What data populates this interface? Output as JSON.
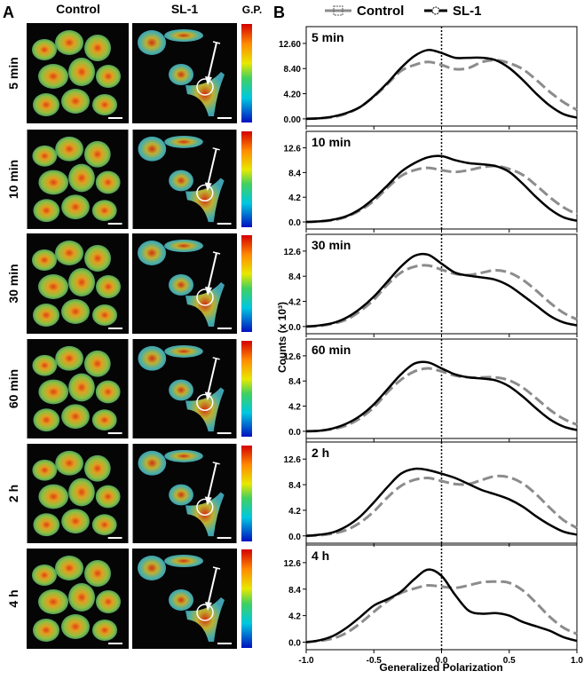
{
  "figure": {
    "panel_a": "A",
    "panel_b": "B",
    "col_control": "Control",
    "col_sl1": "SL-1",
    "colorbar_label": "G.P.",
    "rows": [
      "5 min",
      "10 min",
      "30 min",
      "60 min",
      "2 h",
      "4 h"
    ],
    "y_label": "Counts (x 10³)",
    "x_label": "Generalized Polarization"
  },
  "chart_data": [
    {
      "type": "line",
      "title": "5 min",
      "x": [
        -1,
        -0.9,
        -0.8,
        -0.7,
        -0.6,
        -0.5,
        -0.4,
        -0.3,
        -0.2,
        -0.1,
        0,
        0.1,
        0.2,
        0.3,
        0.4,
        0.5,
        0.6,
        0.7,
        0.8,
        0.9,
        1
      ],
      "series": [
        {
          "name": "Control",
          "color": "#8c8c8c",
          "values": [
            0,
            0.1,
            0.3,
            0.9,
            2,
            3.7,
            5.8,
            8,
            9,
            9.5,
            9,
            8.3,
            8.5,
            9.5,
            9.8,
            9.3,
            8.3,
            6.5,
            4.5,
            2.8,
            1.5
          ]
        },
        {
          "name": "SL-1",
          "color": "#000000",
          "values": [
            0,
            0.1,
            0.4,
            1,
            2,
            3.8,
            6,
            8.5,
            10.5,
            11.5,
            11,
            10.2,
            10.2,
            10.2,
            9.8,
            8.5,
            6.5,
            4.2,
            2.2,
            0.8,
            0.2
          ]
        }
      ],
      "xlim": [
        -1,
        1
      ],
      "xticks": [
        -1,
        -0.5,
        0,
        0.5,
        1
      ],
      "ylim": [
        -1.2,
        15.4
      ],
      "yticks": [
        {
          "value": 0,
          "label": "0.00"
        },
        {
          "value": 4.2,
          "label": "4.20"
        },
        {
          "value": 8.4,
          "label": "8.40"
        },
        {
          "value": 12.6,
          "label": "12.60"
        }
      ],
      "vline": 0
    },
    {
      "type": "line",
      "title": "10 min",
      "x": [
        -1,
        -0.9,
        -0.8,
        -0.7,
        -0.6,
        -0.5,
        -0.4,
        -0.3,
        -0.2,
        -0.1,
        0,
        0.1,
        0.2,
        0.3,
        0.4,
        0.5,
        0.6,
        0.7,
        0.8,
        0.9,
        1
      ],
      "series": [
        {
          "color": "#8c8c8c",
          "values": [
            0,
            0.1,
            0.3,
            0.9,
            2,
            3.6,
            5.8,
            7.8,
            8.8,
            9.2,
            8.8,
            8.5,
            8.8,
            9.3,
            9.5,
            9,
            8,
            6.2,
            4.2,
            2.5,
            1.3
          ]
        },
        {
          "color": "#000000",
          "values": [
            0,
            0.1,
            0.4,
            1,
            2.2,
            4,
            6.2,
            8.5,
            10,
            11,
            11.2,
            10.5,
            10,
            9.8,
            9.5,
            8.5,
            6.5,
            4.2,
            2.2,
            0.8,
            0.2
          ]
        }
      ],
      "xlim": [
        -1,
        1
      ],
      "xticks": [
        -1,
        -0.5,
        0,
        0.5,
        1
      ],
      "ylim": [
        -1.2,
        15.4
      ],
      "yticks": [
        {
          "value": 0,
          "label": "0.0"
        },
        4.2,
        8.4,
        12.6
      ],
      "vline": 0
    },
    {
      "type": "line",
      "title": "30 min",
      "x": [
        -1,
        -0.9,
        -0.8,
        -0.7,
        -0.6,
        -0.5,
        -0.4,
        -0.3,
        -0.2,
        -0.1,
        0,
        0.1,
        0.2,
        0.3,
        0.4,
        0.5,
        0.6,
        0.7,
        0.8,
        0.9,
        1
      ],
      "series": [
        {
          "color": "#8c8c8c",
          "values": [
            0,
            0.1,
            0.5,
            1.2,
            2.6,
            4.5,
            7,
            9,
            10,
            10.2,
            9.5,
            8.8,
            8.6,
            9,
            9.4,
            9,
            7.8,
            6,
            4,
            2.3,
            1.2
          ]
        },
        {
          "color": "#000000",
          "values": [
            0,
            0.2,
            0.6,
            1.5,
            3,
            5,
            7.5,
            10,
            11.8,
            12,
            10.5,
            9,
            8.5,
            8.2,
            7.8,
            6.8,
            5.2,
            3.5,
            1.8,
            0.7,
            0.2
          ]
        }
      ],
      "xlim": [
        -1,
        1
      ],
      "xticks": [
        -1,
        -0.5,
        0,
        0.5,
        1
      ],
      "ylim": [
        -1.2,
        15.4
      ],
      "yticks": [
        {
          "value": 0,
          "label": "0.0"
        },
        4.2,
        8.4,
        12.6
      ],
      "vline": 0
    },
    {
      "type": "line",
      "title": "60 min",
      "x": [
        -1,
        -0.9,
        -0.8,
        -0.7,
        -0.6,
        -0.5,
        -0.4,
        -0.3,
        -0.2,
        -0.1,
        0,
        0.1,
        0.2,
        0.3,
        0.4,
        0.5,
        0.6,
        0.7,
        0.8,
        0.9,
        1
      ],
      "series": [
        {
          "color": "#8c8c8c",
          "values": [
            0,
            0.1,
            0.4,
            1,
            2.2,
            4,
            6.5,
            8.6,
            10,
            10.5,
            10,
            9.3,
            9,
            9,
            9,
            8.5,
            7.3,
            5.5,
            3.6,
            2.1,
            1.1
          ]
        },
        {
          "color": "#000000",
          "values": [
            0,
            0.1,
            0.5,
            1.3,
            2.6,
            4.5,
            7,
            9.5,
            11.3,
            11.5,
            10.5,
            9.5,
            9,
            8.8,
            8.5,
            7.5,
            5.8,
            3.8,
            2,
            0.8,
            0.2
          ]
        }
      ],
      "xlim": [
        -1,
        1
      ],
      "xticks": [
        -1,
        -0.5,
        0,
        0.5,
        1
      ],
      "ylim": [
        -1.2,
        15.4
      ],
      "yticks": [
        {
          "value": 0,
          "label": "0.0"
        },
        4.2,
        8.4,
        12.6
      ],
      "vline": 0
    },
    {
      "type": "line",
      "title": "2 h",
      "x": [
        -1,
        -0.9,
        -0.8,
        -0.7,
        -0.6,
        -0.5,
        -0.4,
        -0.3,
        -0.2,
        -0.1,
        0,
        0.1,
        0.2,
        0.3,
        0.4,
        0.5,
        0.6,
        0.7,
        0.8,
        0.9,
        1
      ],
      "series": [
        {
          "color": "#8c8c8c",
          "values": [
            0,
            0.1,
            0.4,
            1,
            2.2,
            4,
            6.3,
            8.2,
            9.2,
            9.5,
            9,
            8.5,
            8.5,
            9.2,
            9.8,
            9.6,
            8.6,
            6.8,
            4.6,
            2.6,
            1.3
          ]
        },
        {
          "color": "#000000",
          "values": [
            0,
            0.2,
            0.6,
            1.6,
            3.2,
            5.5,
            8,
            10.2,
            11,
            10.8,
            10.2,
            9.5,
            8.5,
            7.5,
            6.8,
            6,
            4.8,
            3.2,
            1.8,
            0.7,
            0.2
          ]
        }
      ],
      "xlim": [
        -1,
        1
      ],
      "xticks": [
        -1,
        -0.5,
        0,
        0.5,
        1
      ],
      "ylim": [
        -1.2,
        15.4
      ],
      "yticks": [
        {
          "value": 0,
          "label": "0.0"
        },
        4.2,
        8.4,
        12.6
      ],
      "vline": 0
    },
    {
      "type": "line",
      "title": "4 h",
      "x": [
        -1,
        -0.9,
        -0.8,
        -0.7,
        -0.6,
        -0.5,
        -0.4,
        -0.3,
        -0.2,
        -0.1,
        0,
        0.1,
        0.2,
        0.3,
        0.4,
        0.5,
        0.6,
        0.7,
        0.8,
        0.9,
        1
      ],
      "series": [
        {
          "color": "#8c8c8c",
          "values": [
            0,
            0.2,
            0.6,
            1.5,
            3,
            4.8,
            6.5,
            7.8,
            8.5,
            9,
            8.8,
            8.6,
            9,
            9.5,
            9.6,
            9.4,
            8.2,
            6.2,
            4,
            2.3,
            1.3
          ]
        },
        {
          "color": "#000000",
          "values": [
            0,
            0.3,
            1,
            2.3,
            4,
            5.8,
            6.8,
            8,
            10,
            11.5,
            10.5,
            7.5,
            5,
            4.5,
            4.6,
            4.2,
            3.2,
            2.5,
            1.8,
            0.8,
            0.2
          ]
        }
      ],
      "xlim": [
        -1,
        1
      ],
      "xticks": [
        {
          "value": -1,
          "label": "-1.0"
        },
        {
          "value": -0.5,
          "label": "-0.5"
        },
        {
          "value": 0,
          "label": "0.0"
        },
        {
          "value": 0.5,
          "label": "0.5"
        },
        {
          "value": 1,
          "label": "1.0"
        }
      ],
      "ylim": [
        -1.2,
        15.4
      ],
      "yticks": [
        {
          "value": 0,
          "label": "0.0"
        },
        4.2,
        8.4,
        12.6
      ],
      "vline": 0
    }
  ]
}
